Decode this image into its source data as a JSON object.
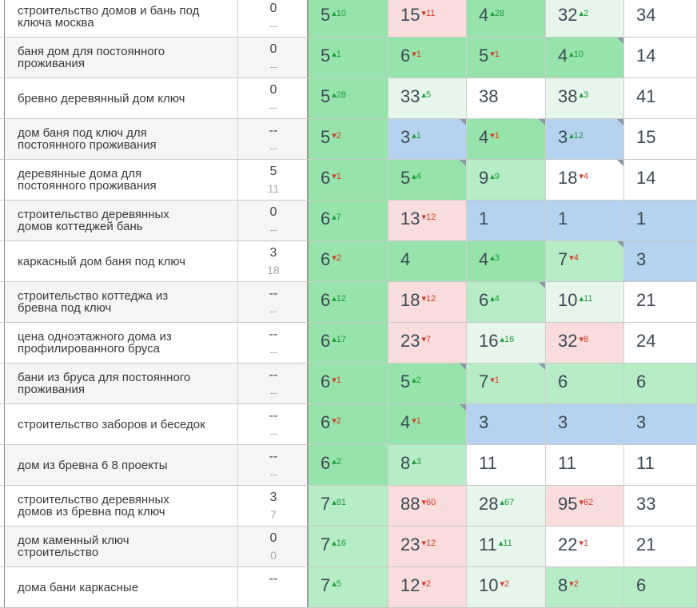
{
  "colors": {
    "green_dark": "#96e3ab",
    "green_mid": "#b6ecc6",
    "green_light": "#e6f6ea",
    "blue": "#b5d3ee",
    "pink": "#f9dddd",
    "white": "#ffffff",
    "delta_up": "#1a9c3a",
    "delta_down": "#d63a2a"
  },
  "rows": [
    {
      "query": "строительство домов и бань под\nключа москва",
      "vol_top": "0",
      "vol_bottom": "--",
      "positions": [
        {
          "value": "5",
          "delta": "10",
          "dir": "up",
          "color": "green_dark",
          "corner": false
        },
        {
          "value": "15",
          "delta": "11",
          "dir": "down",
          "color": "pink",
          "corner": false
        },
        {
          "value": "4",
          "delta": "28",
          "dir": "up",
          "color": "green_dark",
          "corner": false
        },
        {
          "value": "32",
          "delta": "2",
          "dir": "up",
          "color": "green_light",
          "corner": false
        },
        {
          "value": "34",
          "delta": "",
          "dir": "",
          "color": "white",
          "corner": false
        }
      ]
    },
    {
      "query": "баня дом для постоянного\nпроживания",
      "vol_top": "0",
      "vol_bottom": "--",
      "positions": [
        {
          "value": "5",
          "delta": "1",
          "dir": "up",
          "color": "green_dark",
          "corner": false
        },
        {
          "value": "6",
          "delta": "1",
          "dir": "down",
          "color": "green_dark",
          "corner": false
        },
        {
          "value": "5",
          "delta": "1",
          "dir": "down",
          "color": "green_dark",
          "corner": false
        },
        {
          "value": "4",
          "delta": "10",
          "dir": "up",
          "color": "green_dark",
          "corner": true
        },
        {
          "value": "14",
          "delta": "",
          "dir": "",
          "color": "white",
          "corner": false
        }
      ]
    },
    {
      "query": "бревно деревянный дом ключ",
      "vol_top": "0",
      "vol_bottom": "--",
      "positions": [
        {
          "value": "5",
          "delta": "28",
          "dir": "up",
          "color": "green_dark",
          "corner": false
        },
        {
          "value": "33",
          "delta": "5",
          "dir": "up",
          "color": "green_light",
          "corner": false
        },
        {
          "value": "38",
          "delta": "",
          "dir": "",
          "color": "white",
          "corner": false
        },
        {
          "value": "38",
          "delta": "3",
          "dir": "up",
          "color": "green_light",
          "corner": false
        },
        {
          "value": "41",
          "delta": "",
          "dir": "",
          "color": "white",
          "corner": false
        }
      ]
    },
    {
      "query": "дом баня под ключ для\nпостоянного проживания",
      "vol_top": "--",
      "vol_bottom": "--",
      "positions": [
        {
          "value": "5",
          "delta": "2",
          "dir": "down",
          "color": "green_dark",
          "corner": false
        },
        {
          "value": "3",
          "delta": "1",
          "dir": "up",
          "color": "blue",
          "corner": true
        },
        {
          "value": "4",
          "delta": "1",
          "dir": "down",
          "color": "green_dark",
          "corner": true
        },
        {
          "value": "3",
          "delta": "12",
          "dir": "up",
          "color": "blue",
          "corner": true
        },
        {
          "value": "15",
          "delta": "",
          "dir": "",
          "color": "white",
          "corner": false
        }
      ]
    },
    {
      "query": "деревянные дома для\nпостоянного проживания",
      "vol_top": "5",
      "vol_bottom": "11",
      "positions": [
        {
          "value": "6",
          "delta": "1",
          "dir": "down",
          "color": "green_dark",
          "corner": false
        },
        {
          "value": "5",
          "delta": "4",
          "dir": "up",
          "color": "green_dark",
          "corner": true
        },
        {
          "value": "9",
          "delta": "9",
          "dir": "up",
          "color": "green_mid",
          "corner": false
        },
        {
          "value": "18",
          "delta": "4",
          "dir": "down",
          "color": "white",
          "corner": true
        },
        {
          "value": "14",
          "delta": "",
          "dir": "",
          "color": "white",
          "corner": false
        }
      ]
    },
    {
      "query": "строительство деревянных\nдомов коттеджей бань",
      "vol_top": "0",
      "vol_bottom": "--",
      "positions": [
        {
          "value": "6",
          "delta": "7",
          "dir": "up",
          "color": "green_dark",
          "corner": false
        },
        {
          "value": "13",
          "delta": "12",
          "dir": "down",
          "color": "pink",
          "corner": false
        },
        {
          "value": "1",
          "delta": "",
          "dir": "",
          "color": "blue",
          "corner": false
        },
        {
          "value": "1",
          "delta": "",
          "dir": "",
          "color": "blue",
          "corner": false
        },
        {
          "value": "1",
          "delta": "",
          "dir": "",
          "color": "blue",
          "corner": false
        }
      ]
    },
    {
      "query": "каркасный дом баня под ключ",
      "vol_top": "3",
      "vol_bottom": "18",
      "positions": [
        {
          "value": "6",
          "delta": "2",
          "dir": "down",
          "color": "green_dark",
          "corner": false
        },
        {
          "value": "4",
          "delta": "",
          "dir": "",
          "color": "green_dark",
          "corner": false
        },
        {
          "value": "4",
          "delta": "3",
          "dir": "up",
          "color": "green_dark",
          "corner": false
        },
        {
          "value": "7",
          "delta": "4",
          "dir": "down",
          "color": "green_mid",
          "corner": true
        },
        {
          "value": "3",
          "delta": "",
          "dir": "",
          "color": "blue",
          "corner": false
        }
      ]
    },
    {
      "query": "строительство коттеджа из\nбревна под ключ",
      "vol_top": "--",
      "vol_bottom": "--",
      "positions": [
        {
          "value": "6",
          "delta": "12",
          "dir": "up",
          "color": "green_dark",
          "corner": false
        },
        {
          "value": "18",
          "delta": "12",
          "dir": "down",
          "color": "pink",
          "corner": false
        },
        {
          "value": "6",
          "delta": "4",
          "dir": "up",
          "color": "green_mid",
          "corner": true
        },
        {
          "value": "10",
          "delta": "11",
          "dir": "up",
          "color": "green_light",
          "corner": false
        },
        {
          "value": "21",
          "delta": "",
          "dir": "",
          "color": "white",
          "corner": false
        }
      ]
    },
    {
      "query": "цена одноэтажного дома из\nпрофилированного бруса",
      "vol_top": "--",
      "vol_bottom": "--",
      "positions": [
        {
          "value": "6",
          "delta": "17",
          "dir": "up",
          "color": "green_dark",
          "corner": false
        },
        {
          "value": "23",
          "delta": "7",
          "dir": "down",
          "color": "pink",
          "corner": false
        },
        {
          "value": "16",
          "delta": "16",
          "dir": "up",
          "color": "green_light",
          "corner": false
        },
        {
          "value": "32",
          "delta": "8",
          "dir": "down",
          "color": "pink",
          "corner": false
        },
        {
          "value": "24",
          "delta": "",
          "dir": "",
          "color": "white",
          "corner": false
        }
      ]
    },
    {
      "query": "бани из бруса для постоянного\nпроживания",
      "vol_top": "--",
      "vol_bottom": "--",
      "positions": [
        {
          "value": "6",
          "delta": "1",
          "dir": "down",
          "color": "green_dark",
          "corner": false
        },
        {
          "value": "5",
          "delta": "2",
          "dir": "up",
          "color": "green_dark",
          "corner": true
        },
        {
          "value": "7",
          "delta": "1",
          "dir": "down",
          "color": "green_mid",
          "corner": true
        },
        {
          "value": "6",
          "delta": "",
          "dir": "",
          "color": "green_mid",
          "corner": false
        },
        {
          "value": "6",
          "delta": "",
          "dir": "",
          "color": "green_mid",
          "corner": false
        }
      ]
    },
    {
      "query": "строительство заборов и беседок",
      "vol_top": "--",
      "vol_bottom": "--",
      "positions": [
        {
          "value": "6",
          "delta": "2",
          "dir": "down",
          "color": "green_dark",
          "corner": false
        },
        {
          "value": "4",
          "delta": "1",
          "dir": "down",
          "color": "green_dark",
          "corner": true
        },
        {
          "value": "3",
          "delta": "",
          "dir": "",
          "color": "blue",
          "corner": false
        },
        {
          "value": "3",
          "delta": "",
          "dir": "",
          "color": "blue",
          "corner": false
        },
        {
          "value": "3",
          "delta": "",
          "dir": "",
          "color": "blue",
          "corner": false
        }
      ]
    },
    {
      "query": "дом из бревна 6 8 проекты",
      "vol_top": "--",
      "vol_bottom": "--",
      "positions": [
        {
          "value": "6",
          "delta": "2",
          "dir": "up",
          "color": "green_dark",
          "corner": false
        },
        {
          "value": "8",
          "delta": "3",
          "dir": "up",
          "color": "green_mid",
          "corner": false
        },
        {
          "value": "11",
          "delta": "",
          "dir": "",
          "color": "white",
          "corner": false
        },
        {
          "value": "11",
          "delta": "",
          "dir": "",
          "color": "white",
          "corner": false
        },
        {
          "value": "11",
          "delta": "",
          "dir": "",
          "color": "white",
          "corner": false
        }
      ]
    },
    {
      "query": "строительство деревянных\nдомов из бревна под ключ",
      "vol_top": "3",
      "vol_bottom": "7",
      "positions": [
        {
          "value": "7",
          "delta": "81",
          "dir": "up",
          "color": "green_mid",
          "corner": false
        },
        {
          "value": "88",
          "delta": "60",
          "dir": "down",
          "color": "pink",
          "corner": false
        },
        {
          "value": "28",
          "delta": "67",
          "dir": "up",
          "color": "green_light",
          "corner": false
        },
        {
          "value": "95",
          "delta": "62",
          "dir": "down",
          "color": "pink",
          "corner": false
        },
        {
          "value": "33",
          "delta": "",
          "dir": "",
          "color": "white",
          "corner": false
        }
      ]
    },
    {
      "query": "дом каменный ключ\nстроительство",
      "vol_top": "0",
      "vol_bottom": "0",
      "positions": [
        {
          "value": "7",
          "delta": "16",
          "dir": "up",
          "color": "green_mid",
          "corner": false
        },
        {
          "value": "23",
          "delta": "12",
          "dir": "down",
          "color": "pink",
          "corner": false
        },
        {
          "value": "11",
          "delta": "11",
          "dir": "up",
          "color": "green_light",
          "corner": false
        },
        {
          "value": "22",
          "delta": "1",
          "dir": "down",
          "color": "white",
          "corner": false
        },
        {
          "value": "21",
          "delta": "",
          "dir": "",
          "color": "white",
          "corner": false
        }
      ]
    },
    {
      "query": "дома бани каркасные",
      "vol_top": "--",
      "vol_bottom": "",
      "positions": [
        {
          "value": "7",
          "delta": "5",
          "dir": "up",
          "color": "green_mid",
          "corner": false
        },
        {
          "value": "12",
          "delta": "2",
          "dir": "down",
          "color": "pink",
          "corner": false
        },
        {
          "value": "10",
          "delta": "2",
          "dir": "down",
          "color": "green_light",
          "corner": false
        },
        {
          "value": "8",
          "delta": "2",
          "dir": "down",
          "color": "green_mid",
          "corner": false
        },
        {
          "value": "6",
          "delta": "",
          "dir": "",
          "color": "green_mid",
          "corner": false
        }
      ]
    }
  ]
}
